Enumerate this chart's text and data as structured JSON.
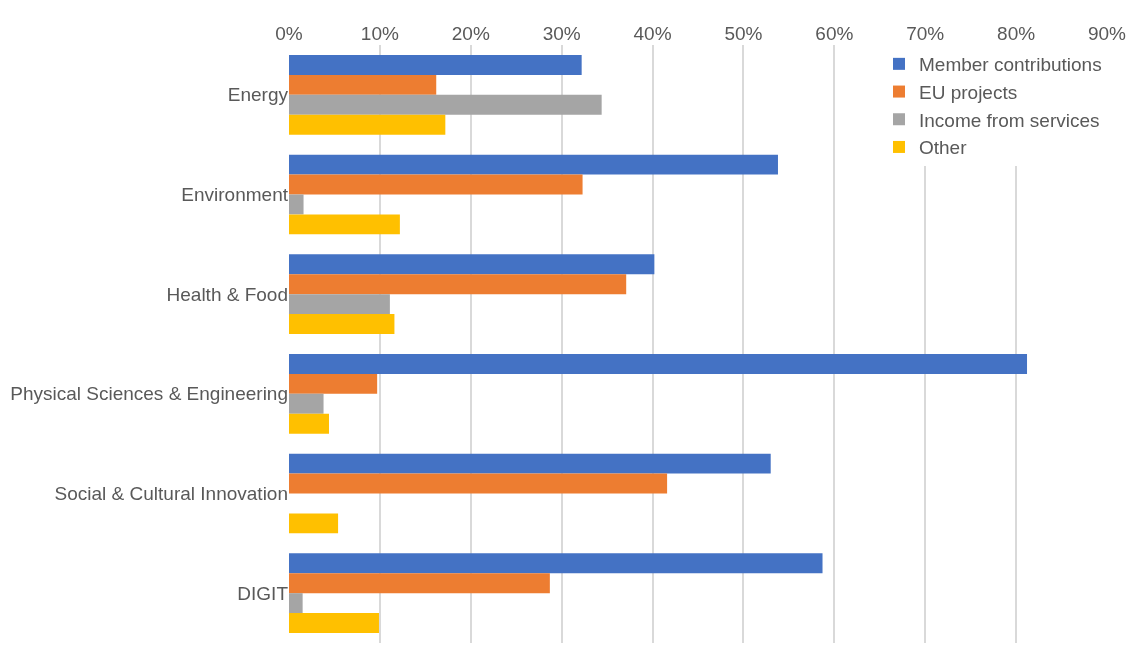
{
  "chart_data": {
    "type": "bar",
    "orientation": "horizontal",
    "categories": [
      "Energy",
      "Environment",
      "Health & Food",
      "Physical Sciences & Engineering",
      "Social & Cultural Innovation",
      "DIGIT"
    ],
    "series": [
      {
        "name": "Member contributions",
        "color": "#4472c4",
        "values": [
          32.2,
          53.8,
          40.2,
          81.2,
          53.0,
          58.7
        ]
      },
      {
        "name": "EU projects",
        "color": "#ed7d31",
        "values": [
          16.2,
          32.3,
          37.1,
          9.7,
          41.6,
          28.7
        ]
      },
      {
        "name": "Income from services",
        "color": "#a5a5a5",
        "values": [
          34.4,
          1.6,
          11.1,
          3.8,
          0,
          1.5
        ]
      },
      {
        "name": "Other",
        "color": "#ffc000",
        "values": [
          17.2,
          12.2,
          11.6,
          4.4,
          5.4,
          9.9
        ]
      }
    ],
    "xlim": [
      0,
      90
    ],
    "xticks": [
      {
        "value": 0,
        "label": "0%"
      },
      {
        "value": 10,
        "label": "10%"
      },
      {
        "value": 20,
        "label": "20%"
      },
      {
        "value": 30,
        "label": "30%"
      },
      {
        "value": 40,
        "label": "40%"
      },
      {
        "value": 50,
        "label": "50%"
      },
      {
        "value": 60,
        "label": "60%"
      },
      {
        "value": 70,
        "label": "70%"
      },
      {
        "value": 80,
        "label": "80%"
      },
      {
        "value": 90,
        "label": "90%"
      }
    ],
    "grid": "x",
    "legend": "top right"
  }
}
